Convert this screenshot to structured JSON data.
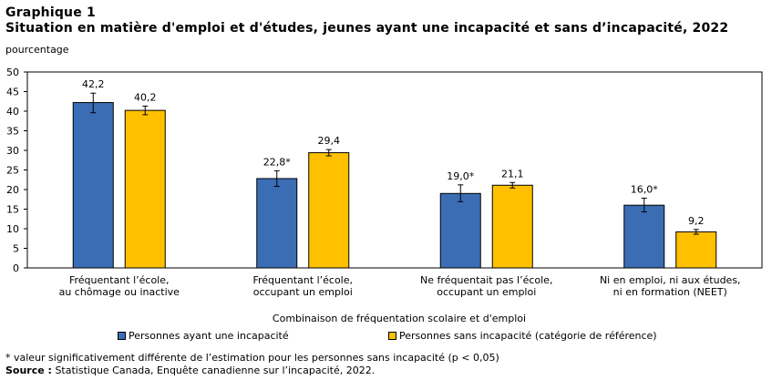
{
  "header": {
    "title_line1": "Graphique 1",
    "title_line2": "Situation en matière d'emploi et d'études, jeunes ayant une incapacité et sans d’incapacité, 2022",
    "unit": "pourcentage"
  },
  "chart_data": {
    "type": "bar",
    "title": "Situation en matière d'emploi et d'études, jeunes ayant une incapacité et sans d’incapacité, 2022",
    "xlabel": "Combinaison de fréquentation scolaire et d'emploi",
    "ylabel": "pourcentage",
    "ylim": [
      0,
      50
    ],
    "yticks": [
      0,
      5,
      10,
      15,
      20,
      25,
      30,
      35,
      40,
      45,
      50
    ],
    "grid": false,
    "legend_position": "bottom",
    "categories": [
      [
        "Fréquentant l’école,",
        "au chômage ou inactive"
      ],
      [
        "Fréquentant l’école,",
        "occupant un emploi"
      ],
      [
        "Ne fréquentait pas l’école,",
        "occupant un emploi"
      ],
      [
        "Ni en emploi, ni aux études,",
        "ni en formation (NEET)"
      ]
    ],
    "series": [
      {
        "name": "Personnes ayant une incapacité",
        "color": "#3b6db4",
        "values": [
          42.2,
          22.8,
          19.0,
          16.0
        ],
        "labels": [
          "42,2",
          "22,8*",
          "19,0*",
          "16,0*"
        ],
        "error_low": [
          39.6,
          20.8,
          16.9,
          14.3
        ],
        "error_high": [
          44.6,
          24.8,
          21.2,
          17.8
        ]
      },
      {
        "name": "Personnes sans incapacité (catégorie de référence)",
        "color": "#ffc000",
        "values": [
          40.2,
          29.4,
          21.1,
          9.2
        ],
        "labels": [
          "40,2",
          "29,4",
          "21,1",
          "9,2"
        ],
        "error_low": [
          39.1,
          28.6,
          20.4,
          8.6
        ],
        "error_high": [
          41.3,
          30.2,
          21.8,
          9.8
        ]
      }
    ]
  },
  "footnote": "* valeur significativement différente de l’estimation pour les personnes sans incapacité (p < 0,05)",
  "source": {
    "label": "Source :",
    "text": " Statistique Canada, Enquête canadienne sur l’incapacité, 2022."
  }
}
